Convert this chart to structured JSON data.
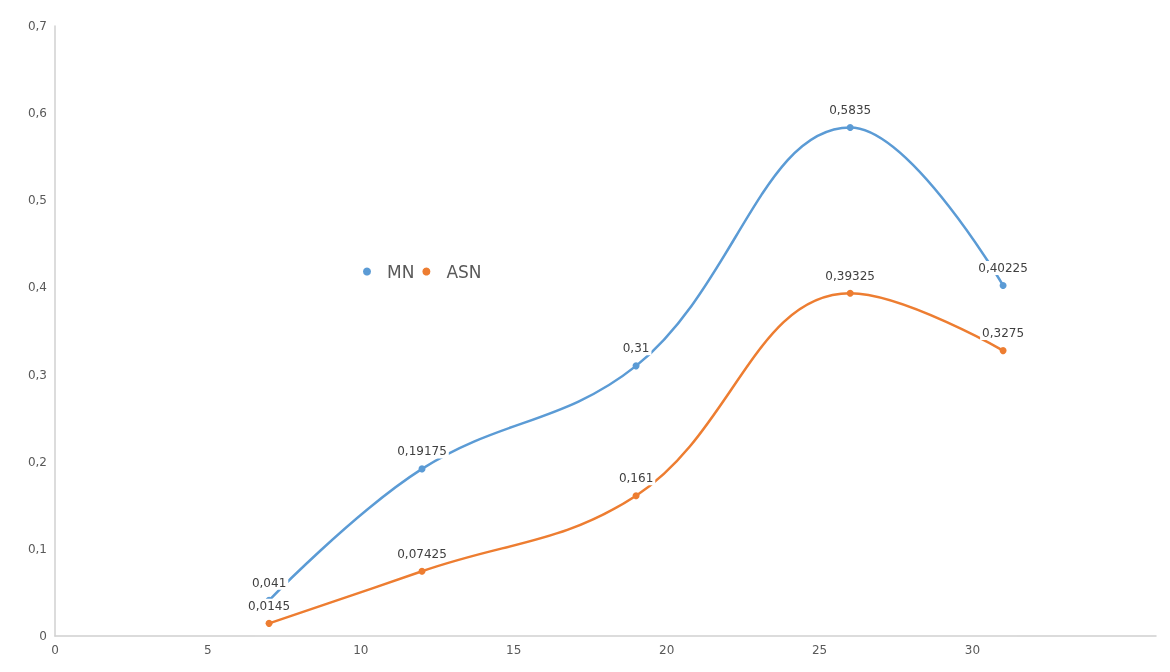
{
  "chart_data": {
    "type": "line",
    "x": [
      7,
      12,
      19,
      26,
      31
    ],
    "series": [
      {
        "name": "MN",
        "color": "#5b9bd5",
        "values": [
          0.041,
          0.19175,
          0.31,
          0.5835,
          0.40225
        ],
        "value_labels": [
          "0,041",
          "0,19175",
          "0,31",
          "0,5835",
          "0,40225"
        ]
      },
      {
        "name": "ASN",
        "color": "#ed7d31",
        "values": [
          0.0145,
          0.07425,
          0.161,
          0.39325,
          0.3275
        ],
        "value_labels": [
          "0,0145",
          "0,07425",
          "0,161",
          "0,39325",
          "0,3275"
        ]
      }
    ],
    "xlim": [
      0,
      36
    ],
    "xticks": [
      0,
      5,
      10,
      15,
      20,
      25,
      30
    ],
    "ylim": [
      0,
      0.7
    ],
    "yticks": [
      {
        "value": 0,
        "label": "0"
      },
      {
        "value": 0.1,
        "label": "0,1"
      },
      {
        "value": 0.2,
        "label": "0,2"
      },
      {
        "value": 0.3,
        "label": "0,3"
      },
      {
        "value": 0.4,
        "label": "0,4"
      },
      {
        "value": 0.5,
        "label": "0,5"
      },
      {
        "value": 0.6,
        "label": "0,6"
      },
      {
        "value": 0.7,
        "label": "0,7"
      }
    ],
    "grid": false,
    "legend": "left",
    "marker": "circle",
    "line_style": "solid"
  }
}
